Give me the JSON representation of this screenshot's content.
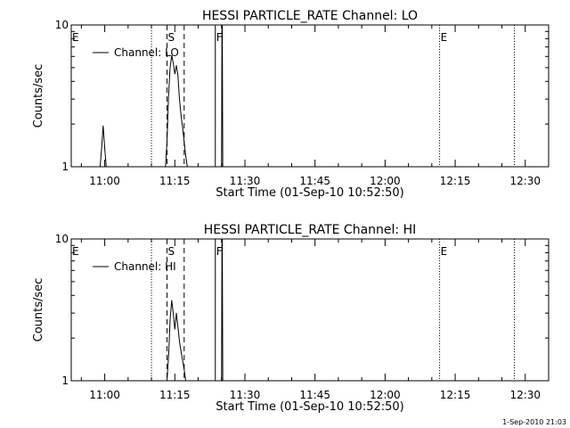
{
  "timestamp": "1-Sep-2010 21:03",
  "chart_data": [
    {
      "type": "line",
      "title": "HESSI PARTICLE_RATE Channel: LO",
      "xlabel": "Start Time (01-Sep-10 10:52:50)",
      "ylabel": "Counts/sec",
      "yscale": "log",
      "ylim": [
        1,
        10
      ],
      "xlim": [
        "10:52:50",
        "12:35:00"
      ],
      "x_ticks": [
        "11:00",
        "11:15",
        "11:30",
        "11:45",
        "12:00",
        "12:15",
        "12:30"
      ],
      "y_ticks": [
        "1",
        "10"
      ],
      "legend": {
        "label": "Channel: LO",
        "placement": "top-left"
      },
      "markers": [
        {
          "label": "E",
          "time": "10:52:50",
          "style": "none"
        },
        {
          "label": "",
          "time": "11:10:00",
          "style": "dotted"
        },
        {
          "label": "S",
          "time": "11:13:20",
          "style": "dashed"
        },
        {
          "label": "",
          "time": "11:17:00",
          "style": "dashed"
        },
        {
          "label": "F",
          "time": "11:23:40",
          "style": "solid"
        },
        {
          "label": "E",
          "time": "12:11:40",
          "style": "dotted"
        },
        {
          "label": "",
          "time": "12:27:40",
          "style": "dotted"
        }
      ],
      "series": [
        {
          "name": "Channel: LO",
          "segments": [
            {
              "x": [
                "10:59:00",
                "10:59:20",
                "10:59:40",
                "11:00:00",
                "11:00:20"
              ],
              "y": [
                1.0,
                1.35,
                1.95,
                1.35,
                1.0
              ]
            },
            {
              "x": [
                "11:13:00",
                "11:13:20",
                "11:13:40",
                "11:14:00",
                "11:14:20",
                "11:14:40",
                "11:15:00",
                "11:15:20",
                "11:15:40",
                "11:16:00",
                "11:16:20",
                "11:16:40",
                "11:17:00",
                "11:17:20",
                "11:17:40"
              ],
              "y": [
                1.0,
                1.5,
                3.2,
                5.0,
                6.1,
                5.4,
                4.5,
                5.2,
                4.4,
                3.0,
                2.3,
                1.9,
                1.5,
                1.2,
                1.0
              ]
            },
            {
              "x": [
                "11:25:00",
                "11:25:05",
                "11:25:10",
                "11:25:15"
              ],
              "y": [
                1.0,
                10.0,
                10.0,
                1.0
              ]
            }
          ]
        }
      ]
    },
    {
      "type": "line",
      "title": "HESSI PARTICLE_RATE Channel: HI",
      "xlabel": "Start Time (01-Sep-10 10:52:50)",
      "ylabel": "Counts/sec",
      "yscale": "log",
      "ylim": [
        1,
        10
      ],
      "xlim": [
        "10:52:50",
        "12:35:00"
      ],
      "x_ticks": [
        "11:00",
        "11:15",
        "11:30",
        "11:45",
        "12:00",
        "12:15",
        "12:30"
      ],
      "y_ticks": [
        "1",
        "10"
      ],
      "legend": {
        "label": "Channel: HI",
        "placement": "top-left"
      },
      "markers": [
        {
          "label": "E",
          "time": "10:52:50",
          "style": "none"
        },
        {
          "label": "",
          "time": "11:10:00",
          "style": "dotted"
        },
        {
          "label": "S",
          "time": "11:13:20",
          "style": "dashed"
        },
        {
          "label": "",
          "time": "11:17:00",
          "style": "dashed"
        },
        {
          "label": "F",
          "time": "11:23:40",
          "style": "solid"
        },
        {
          "label": "E",
          "time": "12:11:40",
          "style": "dotted"
        },
        {
          "label": "",
          "time": "12:27:40",
          "style": "dotted"
        }
      ],
      "series": [
        {
          "name": "Channel: HI",
          "segments": [
            {
              "x": [
                "11:13:20",
                "11:13:40",
                "11:14:00",
                "11:14:20",
                "11:14:40",
                "11:15:00",
                "11:15:20",
                "11:15:40",
                "11:16:00",
                "11:16:20",
                "11:16:40",
                "11:17:00",
                "11:17:20"
              ],
              "y": [
                1.0,
                1.5,
                2.7,
                3.7,
                3.0,
                2.3,
                3.0,
                2.4,
                1.9,
                1.6,
                1.4,
                1.2,
                1.0
              ]
            },
            {
              "x": [
                "11:25:00",
                "11:25:05",
                "11:25:10",
                "11:25:15"
              ],
              "y": [
                1.0,
                10.0,
                10.0,
                1.0
              ]
            }
          ]
        }
      ]
    }
  ]
}
